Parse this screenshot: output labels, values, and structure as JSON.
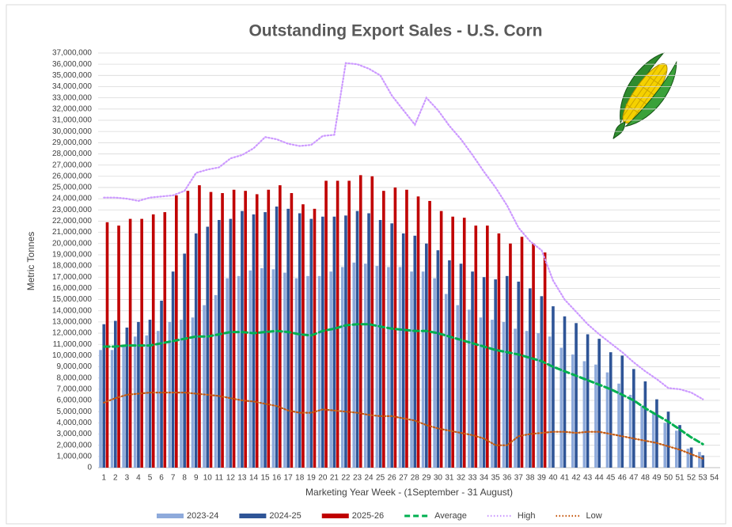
{
  "chart_data": {
    "type": "bar",
    "title": "Outstanding Export Sales - U.S. Corn",
    "xlabel": "Marketing Year Week - (1September - 31 August)",
    "ylabel": "Metric Tonnes",
    "categories": [
      "1",
      "2",
      "3",
      "4",
      "5",
      "6",
      "7",
      "8",
      "9",
      "10",
      "11",
      "12",
      "13",
      "14",
      "15",
      "16",
      "17",
      "18",
      "19",
      "20",
      "21",
      "22",
      "23",
      "24",
      "25",
      "26",
      "27",
      "28",
      "29",
      "30",
      "31",
      "32",
      "33",
      "34",
      "35",
      "36",
      "37",
      "38",
      "39",
      "40",
      "41",
      "42",
      "43",
      "44",
      "45",
      "46",
      "47",
      "48",
      "49",
      "50",
      "51",
      "52",
      "53",
      "54"
    ],
    "ylim": [
      0,
      37000000
    ],
    "yticks": [
      0,
      {
        "value": 1000000,
        "label": "1,000,000"
      },
      {
        "value": 2000000,
        "label": "2,000,000"
      },
      {
        "value": 3000000,
        "label": "3,000,000"
      },
      {
        "value": 4000000,
        "label": "4,000,000"
      },
      {
        "value": 5000000,
        "label": "5,000,000"
      },
      {
        "value": 6000000,
        "label": "6,000,000"
      },
      {
        "value": 7000000,
        "label": "7,000,000"
      },
      {
        "value": 8000000,
        "label": "8,000,000"
      },
      {
        "value": 9000000,
        "label": "9,000,000"
      },
      {
        "value": 10000000,
        "label": "10,000,000"
      },
      {
        "value": 11000000,
        "label": "11,000,000"
      },
      {
        "value": 12000000,
        "label": "12,000,000"
      },
      {
        "value": 13000000,
        "label": "13,000,000"
      },
      {
        "value": 14000000,
        "label": "14,000,000"
      },
      {
        "value": 15000000,
        "label": "15,000,000"
      },
      {
        "value": 16000000,
        "label": "16,000,000"
      },
      {
        "value": 17000000,
        "label": "17,000,000"
      },
      {
        "value": 18000000,
        "label": "18,000,000"
      },
      {
        "value": 19000000,
        "label": "19,000,000"
      },
      {
        "value": 20000000,
        "label": "20,000,000"
      },
      {
        "value": 21000000,
        "label": "21,000,000"
      },
      {
        "value": 22000000,
        "label": "22,000,000"
      },
      {
        "value": 23000000,
        "label": "23,000,000"
      },
      {
        "value": 24000000,
        "label": "24,000,000"
      },
      {
        "value": 25000000,
        "label": "25,000,000"
      },
      {
        "value": 26000000,
        "label": "26,000,000"
      },
      {
        "value": 27000000,
        "label": "27,000,000"
      },
      {
        "value": 28000000,
        "label": "28,000,000"
      },
      {
        "value": 29000000,
        "label": "29,000,000"
      },
      {
        "value": 30000000,
        "label": "30,000,000"
      },
      {
        "value": 31000000,
        "label": "31,000,000"
      },
      {
        "value": 32000000,
        "label": "32,000,000"
      },
      {
        "value": 33000000,
        "label": "33,000,000"
      },
      {
        "value": 34000000,
        "label": "34,000,000"
      },
      {
        "value": 35000000,
        "label": "35,000,000"
      },
      {
        "value": 36000000,
        "label": "36,000,000"
      },
      {
        "value": 37000000,
        "label": "37,000,000"
      }
    ],
    "grid": true,
    "legend": "bottom",
    "series": [
      {
        "name": "2023-24",
        "kind": "bar",
        "color": "#8eaadb",
        "values": [
          10500000,
          10500000,
          10800000,
          11700000,
          11800000,
          12200000,
          13000000,
          13200000,
          13400000,
          14500000,
          15400000,
          16900000,
          17100000,
          17600000,
          17800000,
          17700000,
          17400000,
          16900000,
          17100000,
          17100000,
          17500000,
          17900000,
          18300000,
          18200000,
          18000000,
          17900000,
          17900000,
          17500000,
          17500000,
          16900000,
          15500000,
          14500000,
          14100000,
          13400000,
          13200000,
          13000000,
          12400000,
          12200000,
          12000000,
          11700000,
          10700000,
          10100000,
          9500000,
          9200000,
          8500000,
          7500000,
          6500000,
          5500000,
          4800000,
          4000000,
          3300000,
          1700000,
          1400000,
          null
        ]
      },
      {
        "name": "2024-25",
        "kind": "bar",
        "color": "#2f5597",
        "values": [
          12800000,
          13100000,
          12500000,
          13000000,
          13200000,
          14900000,
          17500000,
          19100000,
          20900000,
          21500000,
          22100000,
          22200000,
          22900000,
          22600000,
          22800000,
          23300000,
          23100000,
          22700000,
          22200000,
          22400000,
          22400000,
          22500000,
          22900000,
          22700000,
          22100000,
          21800000,
          20900000,
          20700000,
          20000000,
          19400000,
          18500000,
          18200000,
          17500000,
          17000000,
          16800000,
          17100000,
          16600000,
          16000000,
          15300000,
          14400000,
          13500000,
          12900000,
          11900000,
          11500000,
          10300000,
          10000000,
          8800000,
          7700000,
          6100000,
          5000000,
          3800000,
          1800000,
          1100000,
          null
        ]
      },
      {
        "name": "2025-26",
        "kind": "bar",
        "color": "#c00000",
        "values": [
          21900000,
          21600000,
          22200000,
          22200000,
          22600000,
          22800000,
          24300000,
          24700000,
          25200000,
          24600000,
          24500000,
          24800000,
          24700000,
          24400000,
          24800000,
          25200000,
          24500000,
          23500000,
          23100000,
          25600000,
          25600000,
          25600000,
          26100000,
          26000000,
          24700000,
          25000000,
          24800000,
          24200000,
          23800000,
          22900000,
          22400000,
          22300000,
          21600000,
          21600000,
          20900000,
          20000000,
          20600000,
          20000000,
          19200000,
          null,
          null,
          null,
          null,
          null,
          null,
          null,
          null,
          null,
          null,
          null,
          null,
          null,
          null,
          null
        ]
      },
      {
        "name": "Average",
        "kind": "line",
        "style": "dashed",
        "color": "#00b050",
        "values": [
          10800000,
          10800000,
          10900000,
          10900000,
          10900000,
          11100000,
          11300000,
          11500000,
          11700000,
          11700000,
          11900000,
          12100000,
          12100000,
          12000000,
          12100000,
          12200000,
          12100000,
          11900000,
          11800000,
          12200000,
          12400000,
          12700000,
          12800000,
          12800000,
          12600000,
          12400000,
          12300000,
          12200000,
          12200000,
          12000000,
          11700000,
          11400000,
          11100000,
          10800000,
          10500000,
          10300000,
          10100000,
          9800000,
          9500000,
          9000000,
          8600000,
          8200000,
          7800000,
          7400000,
          7000000,
          6500000,
          6000000,
          5300000,
          4700000,
          4100000,
          3400000,
          2700000,
          2100000,
          null
        ]
      },
      {
        "name": "High",
        "kind": "line",
        "style": "dotted",
        "color": "#cc99ff",
        "values": [
          24100000,
          24100000,
          24000000,
          23800000,
          24100000,
          24200000,
          24300000,
          24700000,
          26300000,
          26600000,
          26800000,
          27600000,
          27900000,
          28500000,
          29500000,
          29300000,
          28900000,
          28700000,
          28800000,
          29600000,
          29700000,
          36100000,
          36000000,
          35600000,
          35000000,
          33200000,
          31900000,
          30600000,
          33000000,
          31900000,
          30500000,
          29300000,
          27900000,
          26400000,
          25000000,
          23400000,
          21400000,
          20200000,
          19400000,
          16700000,
          15000000,
          13900000,
          12800000,
          11900000,
          11100000,
          10300000,
          9400000,
          8600000,
          7900000,
          7100000,
          7000000,
          6700000,
          6100000,
          null
        ]
      },
      {
        "name": "Low",
        "kind": "line",
        "style": "dotted",
        "color": "#c55a11",
        "values": [
          5800000,
          6200000,
          6500000,
          6600000,
          6700000,
          6700000,
          6700000,
          6700000,
          6600000,
          6500000,
          6400000,
          6200000,
          6000000,
          5900000,
          5700000,
          5500000,
          5100000,
          4900000,
          4900000,
          5200000,
          5100000,
          5000000,
          4900000,
          4700000,
          4600000,
          4600000,
          4400000,
          4200000,
          3800000,
          3500000,
          3300000,
          3100000,
          2900000,
          2600000,
          2000000,
          2000000,
          2800000,
          3000000,
          3100000,
          3200000,
          3200000,
          3100000,
          3200000,
          3200000,
          3000000,
          2800000,
          2600000,
          2400000,
          2200000,
          1900000,
          1600000,
          1200000,
          800000,
          null
        ]
      }
    ]
  }
}
